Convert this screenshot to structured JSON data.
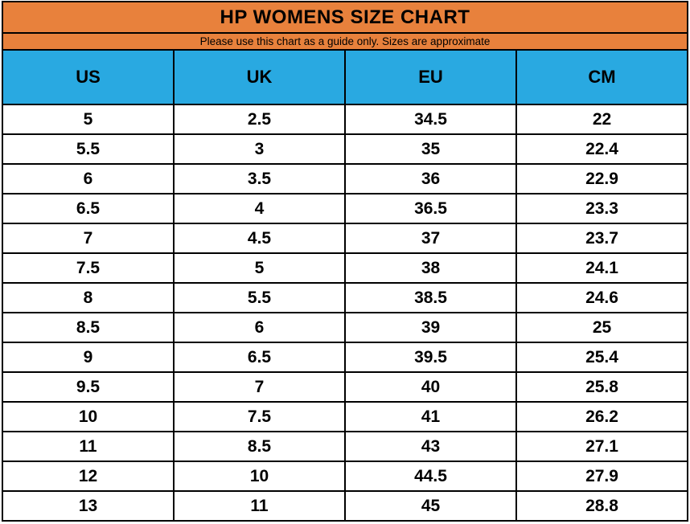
{
  "title": "HP WOMENS SIZE CHART",
  "subtitle": "Please use this chart as a guide only. Sizes are approximate",
  "colors": {
    "title_band_orange": "#E8813C",
    "column_header_blue": "#29A9E1",
    "grid_border_black": "#000000",
    "row_background_white": "#FFFFFF",
    "text_black": "#000000"
  },
  "table": {
    "columns": [
      "US",
      "UK",
      "EU",
      "CM"
    ],
    "rows": [
      [
        "5",
        "2.5",
        "34.5",
        "22"
      ],
      [
        "5.5",
        "3",
        "35",
        "22.4"
      ],
      [
        "6",
        "3.5",
        "36",
        "22.9"
      ],
      [
        "6.5",
        "4",
        "36.5",
        "23.3"
      ],
      [
        "7",
        "4.5",
        "37",
        "23.7"
      ],
      [
        "7.5",
        "5",
        "38",
        "24.1"
      ],
      [
        "8",
        "5.5",
        "38.5",
        "24.6"
      ],
      [
        "8.5",
        "6",
        "39",
        "25"
      ],
      [
        "9",
        "6.5",
        "39.5",
        "25.4"
      ],
      [
        "9.5",
        "7",
        "40",
        "25.8"
      ],
      [
        "10",
        "7.5",
        "41",
        "26.2"
      ],
      [
        "11",
        "8.5",
        "43",
        "27.1"
      ],
      [
        "12",
        "10",
        "44.5",
        "27.9"
      ],
      [
        "13",
        "11",
        "45",
        "28.8"
      ]
    ]
  },
  "chart_data": {
    "type": "table",
    "title": "HP WOMENS SIZE CHART",
    "subtitle": "Please use this chart as a guide only. Sizes are approximate",
    "columns": [
      "US",
      "UK",
      "EU",
      "CM"
    ],
    "rows": [
      [
        5,
        2.5,
        34.5,
        22
      ],
      [
        5.5,
        3,
        35,
        22.4
      ],
      [
        6,
        3.5,
        36,
        22.9
      ],
      [
        6.5,
        4,
        36.5,
        23.3
      ],
      [
        7,
        4.5,
        37,
        23.7
      ],
      [
        7.5,
        5,
        38,
        24.1
      ],
      [
        8,
        5.5,
        38.5,
        24.6
      ],
      [
        8.5,
        6,
        39,
        25
      ],
      [
        9,
        6.5,
        39.5,
        25.4
      ],
      [
        9.5,
        7,
        40,
        25.8
      ],
      [
        10,
        7.5,
        41,
        26.2
      ],
      [
        11,
        8.5,
        43,
        27.1
      ],
      [
        12,
        10,
        44.5,
        27.9
      ],
      [
        13,
        11,
        45,
        28.8
      ]
    ]
  }
}
